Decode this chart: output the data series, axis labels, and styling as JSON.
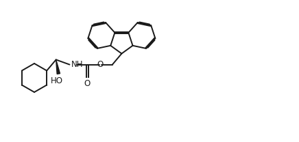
{
  "bg_color": "#ffffff",
  "line_color": "#1a1a1a",
  "line_width": 1.4,
  "fig_width": 4.36,
  "fig_height": 2.08,
  "dpi": 100,
  "label_NH": "NH",
  "label_O": "O",
  "label_HO": "HO"
}
